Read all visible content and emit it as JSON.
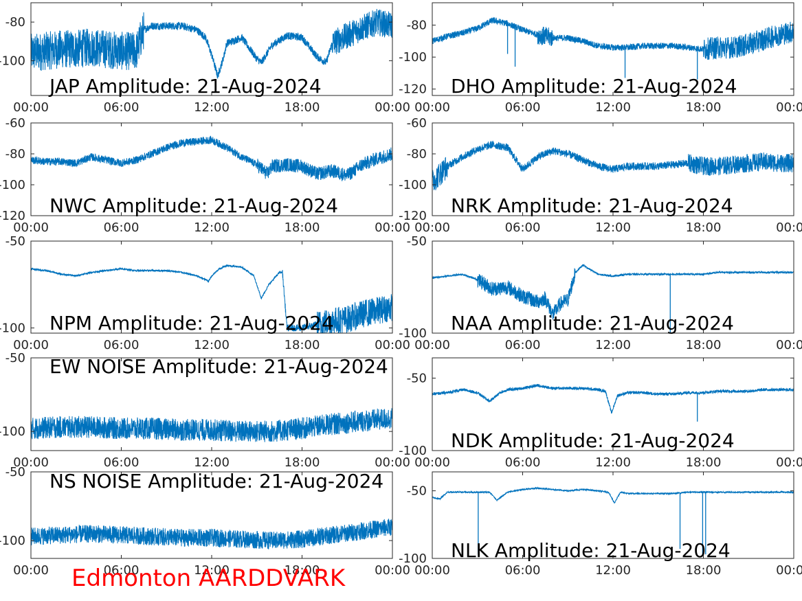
{
  "figure": {
    "footer": "Edmonton AARDDVARK",
    "footer_color": "#ff0000",
    "trace_color": "#0072bd",
    "axes_color": "#262626",
    "background": "#ffffff"
  },
  "chart_data": [
    {
      "type": "line",
      "title": "JAP Amplitude: 21-Aug-2024",
      "x_ticks": [
        "00:00",
        "06:00",
        "12:00",
        "18:00",
        "00:00"
      ],
      "xlim": [
        "00:00",
        "24:00"
      ],
      "y_ticks": [
        -80,
        -100
      ],
      "ylim": [
        -118,
        -70
      ],
      "grid": false,
      "series": [
        {
          "x_hours": [
            0,
            1,
            2,
            3,
            4,
            5,
            6,
            7,
            7.5,
            8,
            9,
            10,
            11,
            11.6,
            12,
            12.4,
            12.8,
            13,
            14,
            15,
            15.3,
            16,
            17,
            18,
            19,
            19.6,
            20,
            21,
            22,
            23,
            24
          ],
          "y_dbm": [
            -96,
            -95,
            -94,
            -94,
            -93,
            -94,
            -95,
            -95,
            -84,
            -82,
            -82,
            -82,
            -84,
            -88,
            -97,
            -108,
            -98,
            -91,
            -88,
            -99,
            -101,
            -92,
            -87,
            -88,
            -98,
            -101,
            -91,
            -87,
            -83,
            -80,
            -82
          ],
          "noise_band": [
            {
              "from": 0,
              "to": 7.5,
              "width_db": 20
            },
            {
              "from": 7.5,
              "to": 20,
              "width_db": 4
            },
            {
              "from": 20,
              "to": 24,
              "width_db": 14
            }
          ]
        }
      ]
    },
    {
      "type": "line",
      "title": "DHO Amplitude: 21-Aug-2024",
      "x_ticks": [
        "00:00",
        "06:00",
        "12:00",
        "18:00",
        "00:00"
      ],
      "xlim": [
        "00:00",
        "24:00"
      ],
      "y_ticks": [
        -80,
        -100,
        -120
      ],
      "ylim": [
        -124,
        -66
      ],
      "grid": false,
      "series": [
        {
          "x_hours": [
            0,
            1,
            2,
            3,
            4,
            5,
            6,
            7,
            8,
            9,
            10,
            11,
            12,
            13,
            14,
            15,
            16,
            17,
            18,
            19,
            20,
            21,
            22,
            23,
            24
          ],
          "y_dbm": [
            -90,
            -87,
            -85,
            -82,
            -77,
            -79,
            -83,
            -86,
            -88,
            -88,
            -90,
            -93,
            -94,
            -94,
            -93,
            -93,
            -93,
            -94,
            -95,
            -94,
            -94,
            -92,
            -89,
            -86,
            -84
          ],
          "noise_band": [
            {
              "from": 0,
              "to": 7,
              "width_db": 4
            },
            {
              "from": 7,
              "to": 8,
              "width_db": 12
            },
            {
              "from": 8,
              "to": 18,
              "width_db": 4
            },
            {
              "from": 18,
              "to": 24,
              "width_db": 14
            }
          ],
          "dropouts": [
            {
              "x_hours": 5.0,
              "y_dbm": -98
            },
            {
              "x_hours": 5.5,
              "y_dbm": -106
            },
            {
              "x_hours": 12.8,
              "y_dbm": -113
            },
            {
              "x_hours": 17.6,
              "y_dbm": -114
            }
          ]
        }
      ]
    },
    {
      "type": "line",
      "title": "NWC Amplitude: 21-Aug-2024",
      "x_ticks": [
        "00:00",
        "06:00",
        "12:00",
        "18:00",
        "00:00"
      ],
      "xlim": [
        "00:00",
        "24:00"
      ],
      "y_ticks": [
        -60,
        -80,
        -100,
        -120
      ],
      "ylim": [
        -120,
        -60
      ],
      "grid": false,
      "series": [
        {
          "x_hours": [
            0,
            1,
            2,
            3,
            4,
            5,
            6,
            7,
            8,
            9,
            10,
            11,
            12,
            13,
            14,
            15,
            15.7,
            16,
            17,
            18,
            19,
            20,
            21,
            22,
            23,
            24
          ],
          "y_dbm": [
            -84,
            -85,
            -85,
            -86,
            -82,
            -84,
            -86,
            -84,
            -80,
            -76,
            -73,
            -72,
            -71,
            -76,
            -82,
            -87,
            -93,
            -88,
            -87,
            -88,
            -93,
            -91,
            -94,
            -87,
            -83,
            -80
          ],
          "noise_band": [
            {
              "from": 0,
              "to": 15,
              "width_db": 5
            },
            {
              "from": 15,
              "to": 24,
              "width_db": 9
            }
          ]
        }
      ]
    },
    {
      "type": "line",
      "title": "NRK Amplitude: 21-Aug-2024",
      "x_ticks": [
        "00:00",
        "06:00",
        "12:00",
        "18:00",
        "00:00"
      ],
      "xlim": [
        "00:00",
        "24:00"
      ],
      "y_ticks": [
        -60,
        -80,
        -100,
        -120
      ],
      "ylim": [
        -120,
        -60
      ],
      "grid": false,
      "series": [
        {
          "x_hours": [
            0,
            1,
            2,
            3,
            4,
            5,
            6,
            7,
            8,
            9,
            10,
            11,
            12,
            13,
            14,
            15,
            16,
            17,
            18,
            19,
            20,
            21,
            22,
            23,
            24
          ],
          "y_dbm": [
            -98,
            -88,
            -82,
            -77,
            -74,
            -76,
            -90,
            -82,
            -78,
            -80,
            -84,
            -88,
            -90,
            -88,
            -88,
            -88,
            -87,
            -86,
            -88,
            -88,
            -87,
            -86,
            -85,
            -86,
            -86
          ],
          "noise_band": [
            {
              "from": 0,
              "to": 1,
              "width_db": 16
            },
            {
              "from": 1,
              "to": 17,
              "width_db": 5
            },
            {
              "from": 17,
              "to": 24,
              "width_db": 12
            }
          ]
        }
      ]
    },
    {
      "type": "line",
      "title": "NPM Amplitude: 21-Aug-2024",
      "x_ticks": [
        "00:00",
        "06:00",
        "12:00",
        "18:00",
        "00:00"
      ],
      "xlim": [
        "00:00",
        "24:00"
      ],
      "y_ticks": [
        -50,
        -100
      ],
      "ylim": [
        -103,
        -50
      ],
      "grid": false,
      "series": [
        {
          "x_hours": [
            0,
            1,
            2,
            3,
            4,
            5,
            6,
            7,
            8,
            9,
            10,
            11,
            11.8,
            12,
            12.5,
            13,
            14,
            14.8,
            15.3,
            15.8,
            16.5,
            16.7,
            17,
            18,
            19,
            20,
            21,
            22,
            23,
            24
          ],
          "y_dbm": [
            -66,
            -67,
            -69,
            -70,
            -68,
            -67,
            -66,
            -67,
            -67,
            -67,
            -68,
            -70,
            -73,
            -70,
            -66,
            -64,
            -65,
            -70,
            -83,
            -75,
            -68,
            -68,
            -100,
            -100,
            -98,
            -96,
            -95,
            -92,
            -90,
            -88
          ],
          "noise_band": [
            {
              "from": 0,
              "to": 16.7,
              "width_db": 1
            },
            {
              "from": 16.7,
              "to": 19,
              "width_db": 4
            },
            {
              "from": 19,
              "to": 24,
              "width_db": 16
            }
          ]
        }
      ]
    },
    {
      "type": "line",
      "title": "NAA Amplitude: 21-Aug-2024",
      "x_ticks": [
        "00:00",
        "06:00",
        "12:00",
        "18:00",
        "00:00"
      ],
      "xlim": [
        "00:00",
        "24:00"
      ],
      "y_ticks": [
        -50,
        -100
      ],
      "ylim": [
        -100,
        -50
      ],
      "grid": false,
      "series": [
        {
          "x_hours": [
            0,
            1,
            2,
            3,
            4,
            5,
            6,
            7,
            7.5,
            8,
            8.5,
            9,
            9.5,
            10,
            11,
            12,
            13,
            14,
            15,
            16,
            17,
            18,
            19,
            20,
            21,
            22,
            23,
            24
          ],
          "y_dbm": [
            -70,
            -69,
            -68,
            -71,
            -76,
            -75,
            -80,
            -83,
            -81,
            -90,
            -84,
            -82,
            -67,
            -63,
            -68,
            -69,
            -68,
            -68,
            -68,
            -68,
            -68,
            -68,
            -67,
            -67,
            -67,
            -67,
            -67,
            -67
          ],
          "noise_band": [
            {
              "from": 0,
              "to": 3,
              "width_db": 1
            },
            {
              "from": 3,
              "to": 9.5,
              "width_db": 8
            },
            {
              "from": 9.5,
              "to": 24,
              "width_db": 1
            }
          ],
          "dropouts": [
            {
              "x_hours": 15.8,
              "y_dbm": -100
            }
          ]
        }
      ]
    },
    {
      "type": "line",
      "title": "EW NOISE Amplitude: 21-Aug-2024",
      "x_ticks": [
        "00:00",
        "06:00",
        "12:00",
        "18:00",
        "00:00"
      ],
      "xlim": [
        "00:00",
        "24:00"
      ],
      "y_ticks": [
        -50,
        -100
      ],
      "ylim": [
        -113,
        -50
      ],
      "grid": false,
      "series": [
        {
          "x_hours": [
            0,
            2,
            4,
            6,
            8,
            10,
            12,
            14,
            16,
            18,
            20,
            22,
            24
          ],
          "y_dbm": [
            -98,
            -97,
            -97,
            -98,
            -98,
            -99,
            -99,
            -100,
            -100,
            -98,
            -95,
            -93,
            -91
          ],
          "noise_band": [
            {
              "from": 0,
              "to": 24,
              "width_db": 15
            }
          ]
        }
      ]
    },
    {
      "type": "line",
      "title": "NDK Amplitude: 21-Aug-2024",
      "x_ticks": [
        "00:00",
        "06:00",
        "12:00",
        "18:00",
        "00:00"
      ],
      "xlim": [
        "00:00",
        "24:00"
      ],
      "y_ticks": [
        -50,
        -100
      ],
      "ylim": [
        -100,
        -36
      ],
      "grid": false,
      "series": [
        {
          "x_hours": [
            0,
            1,
            2,
            3,
            3.8,
            4.5,
            5,
            6,
            7,
            8,
            9,
            10,
            11,
            11.5,
            11.9,
            12.3,
            13,
            14,
            15,
            16,
            17,
            18,
            19,
            20,
            21,
            22,
            23,
            24
          ],
          "y_dbm": [
            -61,
            -60,
            -58,
            -60,
            -66,
            -60,
            -58,
            -57,
            -55,
            -57,
            -57,
            -57,
            -58,
            -59,
            -74,
            -62,
            -60,
            -60,
            -61,
            -61,
            -60,
            -60,
            -59,
            -59,
            -59,
            -58,
            -58,
            -58
          ],
          "noise_band": [
            {
              "from": 0,
              "to": 24,
              "width_db": 2
            }
          ],
          "dropouts": [
            {
              "x_hours": 17.6,
              "y_dbm": -80
            }
          ]
        }
      ]
    },
    {
      "type": "line",
      "title": "NS NOISE Amplitude: 21-Aug-2024",
      "x_ticks": [
        "00:00",
        "06:00",
        "12:00",
        "18:00",
        "00:00"
      ],
      "xlim": [
        "00:00",
        "24:00"
      ],
      "y_ticks": [
        -50,
        -100
      ],
      "ylim": [
        -113,
        -50
      ],
      "grid": false,
      "series": [
        {
          "x_hours": [
            0,
            2,
            4,
            6,
            8,
            10,
            12,
            14,
            16,
            18,
            20,
            22,
            24
          ],
          "y_dbm": [
            -97,
            -96,
            -95,
            -96,
            -97,
            -98,
            -98,
            -99,
            -100,
            -99,
            -96,
            -93,
            -90
          ],
          "noise_band": [
            {
              "from": 0,
              "to": 24,
              "width_db": 13
            }
          ]
        }
      ]
    },
    {
      "type": "line",
      "title": "NLK Amplitude: 21-Aug-2024",
      "x_ticks": [
        "00:00",
        "06:00",
        "12:00",
        "18:00",
        "00:00"
      ],
      "xlim": [
        "00:00",
        "24:00"
      ],
      "y_ticks": [
        -50,
        -100
      ],
      "ylim": [
        -100,
        -36
      ],
      "grid": false,
      "series": [
        {
          "x_hours": [
            0,
            0.5,
            1,
            2,
            3,
            3.8,
            4.3,
            5,
            6,
            7,
            8,
            9,
            10,
            11,
            11.7,
            12.1,
            12.5,
            13,
            14,
            15,
            16,
            17,
            18,
            19,
            20,
            21,
            22,
            23,
            24
          ],
          "y_dbm": [
            -55,
            -56,
            -51,
            -51,
            -51,
            -51,
            -57,
            -51,
            -49,
            -48,
            -49,
            -50,
            -49,
            -50,
            -51,
            -59,
            -51,
            -52,
            -52,
            -52,
            -52,
            -51,
            -51,
            -51,
            -51,
            -51,
            -51,
            -51,
            -51
          ],
          "noise_band": [
            {
              "from": 0,
              "to": 24,
              "width_db": 1
            }
          ],
          "dropouts": [
            {
              "x_hours": 3.05,
              "y_dbm": -97
            },
            {
              "x_hours": 16.45,
              "y_dbm": -93
            },
            {
              "x_hours": 17.95,
              "y_dbm": -97
            },
            {
              "x_hours": 18.15,
              "y_dbm": -97
            }
          ]
        }
      ]
    }
  ]
}
